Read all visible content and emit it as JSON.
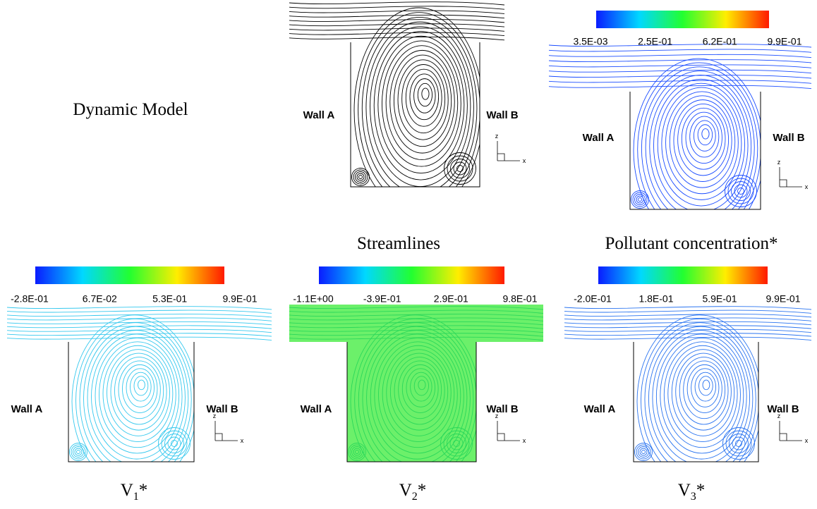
{
  "row_label": "Dynamic Model",
  "panels": [
    {
      "caption": [
        "Streamlines"
      ],
      "wall_left": "Wall A",
      "wall_right": "Wall B",
      "axis_z": "z",
      "axis_x": "x"
    },
    {
      "caption": [
        "Pollutant concentration*"
      ],
      "colorbar_labels": [
        "3.5E-03",
        "2.5E-01",
        "6.2E-01",
        "9.9E-01"
      ],
      "wall_left": "Wall A",
      "wall_right": "Wall B",
      "axis_z": "z",
      "axis_x": "x"
    },
    {
      "caption": [
        "V",
        "1",
        "*"
      ],
      "colorbar_labels": [
        "-2.8E-01",
        "6.7E-02",
        "5.3E-01",
        "9.9E-01"
      ],
      "wall_left": "Wall A",
      "wall_right": "Wall B",
      "axis_z": "z",
      "axis_x": "x"
    },
    {
      "caption": [
        "V",
        "2",
        "*"
      ],
      "colorbar_labels": [
        "-1.1E+00",
        "-3.9E-01",
        "2.9E-01",
        "9.8E-01"
      ],
      "wall_left": "Wall A",
      "wall_right": "Wall B",
      "axis_z": "z",
      "axis_x": "x"
    },
    {
      "caption": [
        "V",
        "3",
        "*"
      ],
      "colorbar_labels": [
        "-2.0E-01",
        "1.8E-01",
        "5.9E-01",
        "9.9E-01"
      ],
      "wall_left": "Wall A",
      "wall_right": "Wall B",
      "axis_z": "z",
      "axis_x": "x"
    }
  ]
}
